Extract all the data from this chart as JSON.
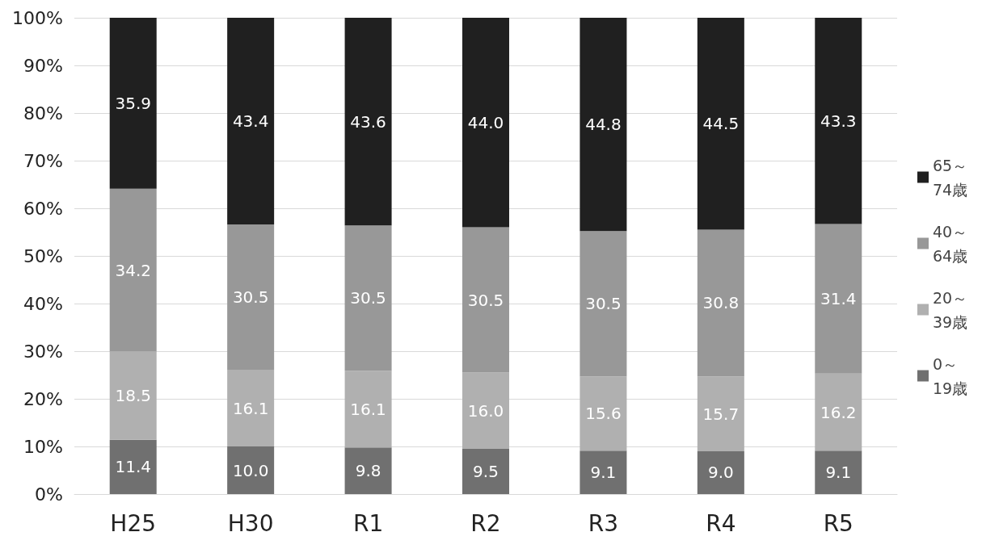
{
  "chart_data": {
    "type": "bar",
    "stacked": true,
    "categories": [
      "H25",
      "H30",
      "R1",
      "R2",
      "R3",
      "R4",
      "R5"
    ],
    "series": [
      {
        "name": "0～19歳",
        "color": "#707070",
        "values": [
          11.4,
          10.0,
          9.8,
          9.5,
          9.1,
          9.0,
          9.1
        ],
        "value_labels": [
          "11.4",
          "10.0",
          "9.8",
          "9.5",
          "9.1",
          "9.0",
          "9.1"
        ]
      },
      {
        "name": "20～39歳",
        "color": "#b0b0b0",
        "values": [
          18.5,
          16.1,
          16.1,
          16.0,
          15.6,
          15.7,
          16.2
        ],
        "value_labels": [
          "18.5",
          "16.1",
          "16.1",
          "16.0",
          "15.6",
          "15.7",
          "16.2"
        ]
      },
      {
        "name": "40～64歳",
        "color": "#989898",
        "values": [
          34.2,
          30.5,
          30.5,
          30.5,
          30.5,
          30.8,
          31.4
        ],
        "value_labels": [
          "34.2",
          "30.5",
          "30.5",
          "30.5",
          "30.5",
          "30.8",
          "31.4"
        ]
      },
      {
        "name": "65～74歳",
        "color": "#202020",
        "values": [
          35.9,
          43.4,
          43.6,
          44.0,
          44.8,
          44.5,
          43.3
        ],
        "value_labels": [
          "35.9",
          "43.4",
          "43.6",
          "44.0",
          "44.8",
          "44.5",
          "43.3"
        ]
      }
    ],
    "ylim": [
      0,
      100
    ],
    "yticks": [
      {
        "value": 0,
        "label": "0%"
      },
      {
        "value": 10,
        "label": "10%"
      },
      {
        "value": 20,
        "label": "20%"
      },
      {
        "value": 30,
        "label": "30%"
      },
      {
        "value": 40,
        "label": "40%"
      },
      {
        "value": 50,
        "label": "50%"
      },
      {
        "value": 60,
        "label": "60%"
      },
      {
        "value": 70,
        "label": "70%"
      },
      {
        "value": 80,
        "label": "80%"
      },
      {
        "value": 90,
        "label": "90%"
      },
      {
        "value": 100,
        "label": "100%"
      }
    ],
    "grid": "y",
    "legend": "right"
  }
}
